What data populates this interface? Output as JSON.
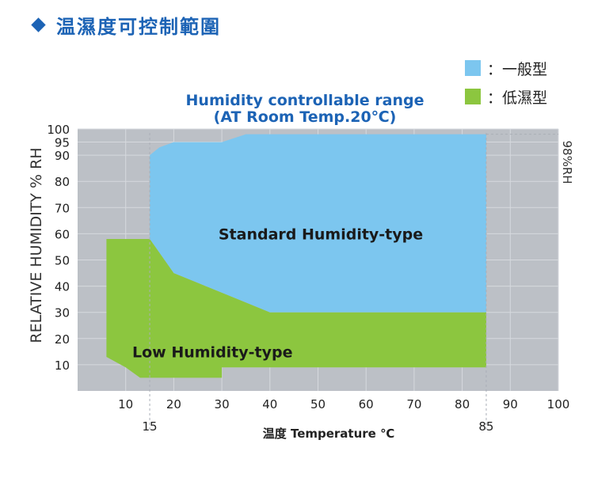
{
  "header": {
    "title": "温濕度可控制範圍"
  },
  "legend": {
    "items": [
      {
        "label": "：一般型",
        "color": "#7cc6ef"
      },
      {
        "label": "：低濕型",
        "color": "#8cc63f"
      }
    ]
  },
  "colors": {
    "background": "#bcc0c6",
    "grid": "#d6d9de",
    "title": "#1c63b5",
    "dashed": "#ffffff"
  },
  "chart_data": {
    "type": "area",
    "title": [
      "Humidity controllable range",
      "(AT Room Temp.20℃)"
    ],
    "xlabel": "温度 Temperature ℃",
    "ylabel": "RELATIVE HUMIDITY % RH",
    "right_label": "98%RH",
    "xlim": [
      0,
      100
    ],
    "ylim": [
      0,
      100
    ],
    "x_ticks": [
      10,
      20,
      30,
      40,
      50,
      60,
      70,
      80,
      90,
      100
    ],
    "x_ticks_extra": [
      15,
      85
    ],
    "y_ticks": [
      10,
      20,
      30,
      40,
      50,
      60,
      70,
      80,
      90,
      95,
      100
    ],
    "grid": true,
    "series": [
      {
        "name": "Standard Humidity-type",
        "color": "#7cc6ef",
        "label_at": [
          35,
          60
        ],
        "points": [
          [
            15,
            90
          ],
          [
            17,
            93
          ],
          [
            20,
            95
          ],
          [
            30,
            95
          ],
          [
            35,
            98
          ],
          [
            85,
            98
          ],
          [
            85,
            30
          ],
          [
            40,
            30
          ],
          [
            20,
            45
          ],
          [
            15,
            58
          ]
        ]
      },
      {
        "name": "Low Humidity-type",
        "color": "#8cc63f",
        "label_at": [
          24,
          15
        ],
        "points": [
          [
            6,
            58
          ],
          [
            15,
            58
          ],
          [
            20,
            45
          ],
          [
            40,
            30
          ],
          [
            85,
            30
          ],
          [
            85,
            9
          ],
          [
            30,
            9
          ],
          [
            30,
            5
          ],
          [
            13,
            5
          ],
          [
            10,
            9
          ],
          [
            6,
            13
          ]
        ]
      }
    ]
  }
}
